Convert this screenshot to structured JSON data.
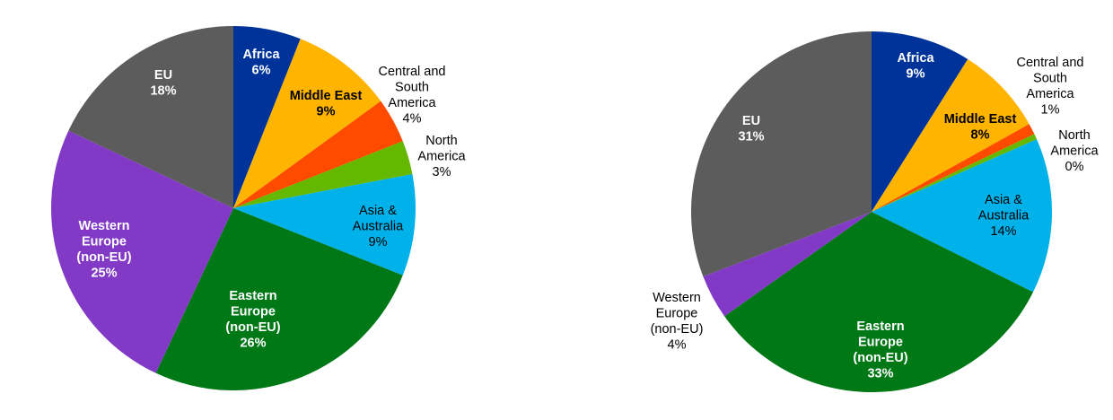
{
  "chart_data": [
    {
      "type": "pie",
      "title": "",
      "start_angle_deg": 0,
      "direction": "clockwise",
      "slices": [
        {
          "label": "Africa",
          "value": 6,
          "percent_label": "6%",
          "color": "#003399",
          "label_color": "#ffffff"
        },
        {
          "label": "Middle East",
          "value": 9,
          "percent_label": "9%",
          "color": "#ffb400",
          "label_color": "#000000"
        },
        {
          "label": "Central and South America",
          "value": 4,
          "percent_label": "4%",
          "color": "#ff4b00",
          "label_color": "#000000"
        },
        {
          "label": "North America",
          "value": 3,
          "percent_label": "3%",
          "color": "#65b800",
          "label_color": "#000000"
        },
        {
          "label": "Asia & Australia",
          "value": 9,
          "percent_label": "9%",
          "color": "#00b1ea",
          "label_color": "#000000"
        },
        {
          "label": "Eastern Europe (non-EU)",
          "value": 26,
          "percent_label": "26%",
          "color": "#007816",
          "label_color": "#ffffff"
        },
        {
          "label": "Western Europe (non-EU)",
          "value": 25,
          "percent_label": "25%",
          "color": "#8139c6",
          "label_color": "#ffffff"
        },
        {
          "label": "EU",
          "value": 18,
          "percent_label": "18%",
          "color": "#5c5c5c",
          "label_color": "#ffffff"
        }
      ]
    },
    {
      "type": "pie",
      "title": "",
      "start_angle_deg": 0,
      "direction": "clockwise",
      "slices": [
        {
          "label": "Africa",
          "value": 9,
          "percent_label": "9%",
          "color": "#003399",
          "label_color": "#ffffff"
        },
        {
          "label": "Middle East",
          "value": 8,
          "percent_label": "8%",
          "color": "#ffb400",
          "label_color": "#000000"
        },
        {
          "label": "Central and South America",
          "value": 1,
          "percent_label": "1%",
          "color": "#ff4b00",
          "label_color": "#000000"
        },
        {
          "label": "North America",
          "value": 0.5,
          "percent_label": "0%",
          "color": "#65b800",
          "label_color": "#000000"
        },
        {
          "label": "Asia & Australia",
          "value": 14,
          "percent_label": "14%",
          "color": "#00b1ea",
          "label_color": "#000000"
        },
        {
          "label": "Eastern Europe (non-EU)",
          "value": 33,
          "percent_label": "33%",
          "color": "#007816",
          "label_color": "#ffffff"
        },
        {
          "label": "Western Europe (non-EU)",
          "value": 4,
          "percent_label": "4%",
          "color": "#8139c6",
          "label_color": "#000000"
        },
        {
          "label": "EU",
          "value": 31,
          "percent_label": "31%",
          "color": "#5c5c5c",
          "label_color": "#ffffff"
        }
      ]
    }
  ]
}
